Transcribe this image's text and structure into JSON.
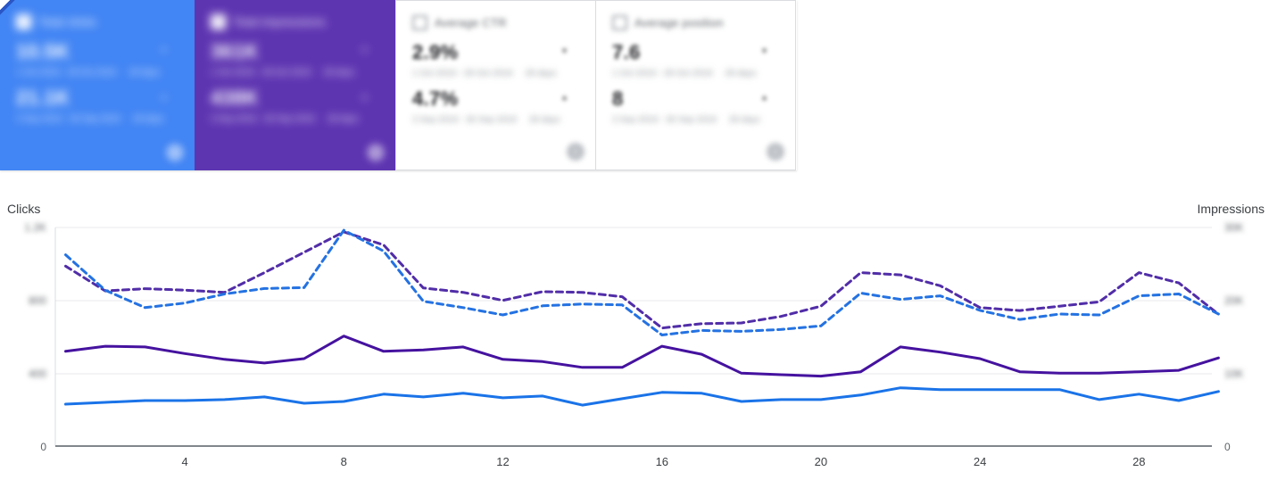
{
  "cards": [
    {
      "title": "Total clicks",
      "selected": true,
      "accent": "#4285f4",
      "check": "✓",
      "current": {
        "value": "10.5K",
        "delta": "▾",
        "range": "1 Oct 2019 - 28 Oct 2019",
        "tag": "28 days"
      },
      "previous": {
        "value": "21.1K",
        "delta": "▴",
        "range": "3 Sep 2019 - 30 Sep 2019",
        "tag": "28 days"
      },
      "info_icon": "i"
    },
    {
      "title": "Total impressions",
      "selected": true,
      "accent": "#5e35b1",
      "check": "✓",
      "current": {
        "value": "361K",
        "delta": "▾",
        "range": "1 Oct 2019 - 28 Oct 2019",
        "tag": "28 days"
      },
      "previous": {
        "value": "438K",
        "delta": "▴",
        "range": "3 Sep 2019 - 30 Sep 2019",
        "tag": "28 days"
      },
      "info_icon": "i"
    },
    {
      "title": "Average CTR",
      "selected": false,
      "accent": "#ffffff",
      "check": "",
      "current": {
        "value": "2.9%",
        "delta": "▾",
        "range": "1 Oct 2019 - 28 Oct 2019",
        "tag": "28 days"
      },
      "previous": {
        "value": "4.7%",
        "delta": "▴",
        "range": "3 Sep 2019 - 30 Sep 2019",
        "tag": "28 days"
      },
      "info_icon": "i"
    },
    {
      "title": "Average position",
      "selected": false,
      "accent": "#ffffff",
      "check": "",
      "current": {
        "value": "7.6",
        "delta": "▾",
        "range": "1 Oct 2019 - 28 Oct 2019",
        "tag": "28 days"
      },
      "previous": {
        "value": "8",
        "delta": "▴",
        "range": "3 Sep 2019 - 30 Sep 2019",
        "tag": "28 days"
      },
      "info_icon": "i"
    }
  ],
  "chart_data": {
    "type": "line",
    "x_axis_label_days_of_month": true,
    "x_ticks": [
      4,
      8,
      12,
      16,
      20,
      24,
      28
    ],
    "days": 30,
    "left_axis": {
      "title": "Clicks",
      "max": 1200,
      "ticks_top_to_bottom": [
        "1.2K",
        "800",
        "400",
        "0"
      ],
      "ticks_blurred": [
        true,
        true,
        true,
        false
      ]
    },
    "right_axis": {
      "title": "Impressions",
      "max": 30000,
      "ticks_top_to_bottom": [
        "30K",
        "20K",
        "10K",
        "0"
      ],
      "ticks_blurred": [
        true,
        true,
        true,
        false
      ]
    },
    "grid": true,
    "series": [
      {
        "name": "Clicks - current period",
        "axis": "left",
        "style": "solid",
        "color": "#1a73e8",
        "values": [
          230,
          240,
          250,
          250,
          255,
          270,
          235,
          245,
          285,
          270,
          290,
          265,
          275,
          225,
          260,
          295,
          290,
          245,
          255,
          255,
          280,
          320,
          310,
          310,
          310,
          310,
          255,
          285,
          250,
          300
        ]
      },
      {
        "name": "Clicks - previous period",
        "axis": "left",
        "style": "dashed",
        "color": "#2472e2",
        "values": [
          1050,
          855,
          760,
          785,
          835,
          865,
          870,
          1185,
          1070,
          795,
          760,
          720,
          770,
          780,
          775,
          610,
          635,
          630,
          640,
          660,
          840,
          805,
          825,
          745,
          695,
          725,
          720,
          825,
          835,
          725
        ]
      },
      {
        "name": "Impressions - current period",
        "axis": "right",
        "style": "solid",
        "color": "#45129f",
        "values": [
          13000,
          13700,
          13600,
          12700,
          11900,
          11400,
          12000,
          15100,
          13000,
          13200,
          13600,
          11900,
          11600,
          10800,
          10800,
          13700,
          12600,
          10000,
          9800,
          9600,
          10200,
          13600,
          12900,
          12000,
          10200,
          10000,
          10000,
          10200,
          10400,
          12100
        ]
      },
      {
        "name": "Impressions - previous period",
        "axis": "right",
        "style": "dashed",
        "color": "#512da8",
        "values": [
          24700,
          21300,
          21600,
          21400,
          21100,
          23800,
          26600,
          29400,
          27600,
          21700,
          21100,
          20000,
          21200,
          21100,
          20500,
          16200,
          16800,
          16900,
          17800,
          19200,
          23800,
          23500,
          22000,
          19000,
          18600,
          19200,
          19800,
          23800,
          22400,
          18100
        ]
      }
    ]
  }
}
